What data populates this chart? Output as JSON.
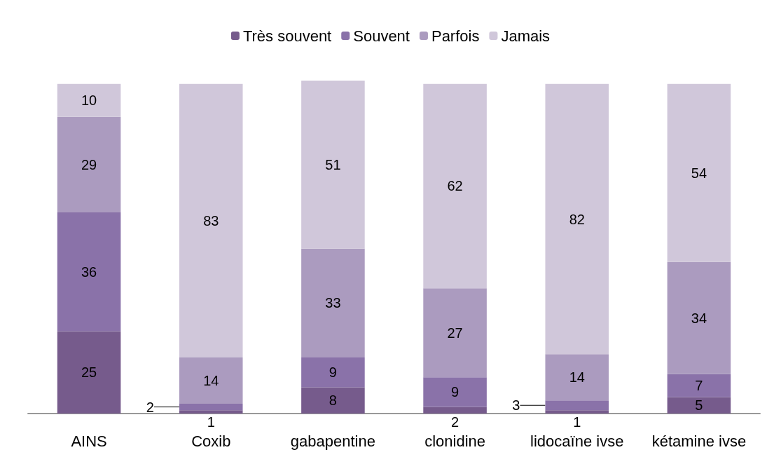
{
  "chart_data": {
    "type": "bar",
    "stacked": true,
    "data_labels": true,
    "legend": "top",
    "tick_labels": "x",
    "categories": [
      "AINS",
      "Coxib",
      "gabapentine",
      "clonidine",
      "lidocaïne ivse",
      "kétamine ivse"
    ],
    "series": [
      {
        "name": "Très souvent",
        "color": "#765b8c",
        "values": [
          25,
          1,
          8,
          2,
          1,
          5
        ]
      },
      {
        "name": "Souvent",
        "color": "#8a72a9",
        "values": [
          36,
          2,
          9,
          9,
          3,
          7
        ]
      },
      {
        "name": "Parfois",
        "color": "#ab9bbf",
        "values": [
          29,
          14,
          33,
          27,
          14,
          34
        ]
      },
      {
        "name": "Jamais",
        "color": "#d0c7da",
        "values": [
          10,
          83,
          51,
          62,
          82,
          54
        ]
      }
    ]
  }
}
